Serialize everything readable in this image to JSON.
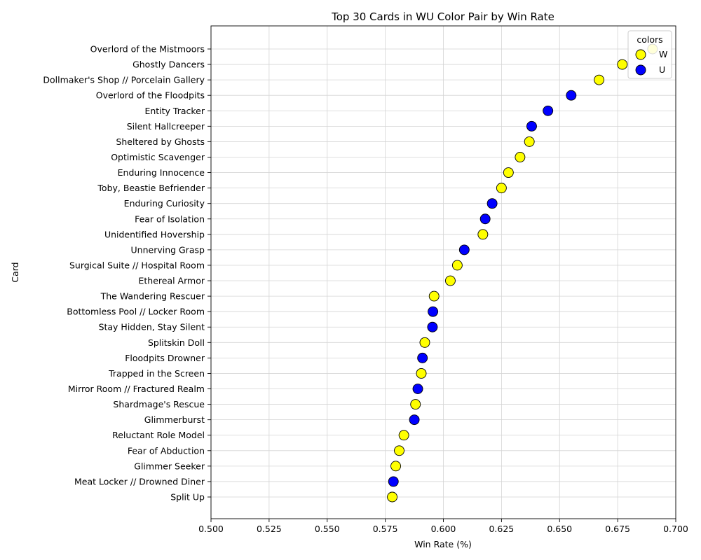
{
  "chart_data": {
    "type": "scatter",
    "title": "Top 30 Cards in WU Color Pair by Win Rate",
    "xlabel": "Win Rate (%)",
    "ylabel": "Card",
    "xlim": [
      0.5,
      0.7
    ],
    "xticks": [
      "0.500",
      "0.525",
      "0.550",
      "0.575",
      "0.600",
      "0.625",
      "0.650",
      "0.675",
      "0.700"
    ],
    "grid": true,
    "legend": {
      "title": "colors",
      "placement": "top-right",
      "entries": [
        {
          "label": "W",
          "color": "#ffff00"
        },
        {
          "label": "U",
          "color": "#0000ff"
        }
      ]
    },
    "points": [
      {
        "card": "Overlord of the Mistmoors",
        "value": 0.69,
        "color": "W"
      },
      {
        "card": "Ghostly Dancers",
        "value": 0.677,
        "color": "W"
      },
      {
        "card": "Dollmaker's Shop // Porcelain Gallery",
        "value": 0.667,
        "color": "W"
      },
      {
        "card": "Overlord of the Floodpits",
        "value": 0.655,
        "color": "U"
      },
      {
        "card": "Entity Tracker",
        "value": 0.645,
        "color": "U"
      },
      {
        "card": "Silent Hallcreeper",
        "value": 0.638,
        "color": "U"
      },
      {
        "card": "Sheltered by Ghosts",
        "value": 0.637,
        "color": "W"
      },
      {
        "card": "Optimistic Scavenger",
        "value": 0.633,
        "color": "W"
      },
      {
        "card": "Enduring Innocence",
        "value": 0.628,
        "color": "W"
      },
      {
        "card": "Toby, Beastie Befriender",
        "value": 0.625,
        "color": "W"
      },
      {
        "card": "Enduring Curiosity",
        "value": 0.621,
        "color": "U"
      },
      {
        "card": "Fear of Isolation",
        "value": 0.618,
        "color": "U"
      },
      {
        "card": "Unidentified Hovership",
        "value": 0.617,
        "color": "W"
      },
      {
        "card": "Unnerving Grasp",
        "value": 0.609,
        "color": "U"
      },
      {
        "card": "Surgical Suite // Hospital Room",
        "value": 0.606,
        "color": "W"
      },
      {
        "card": "Ethereal Armor",
        "value": 0.603,
        "color": "W"
      },
      {
        "card": "The Wandering Rescuer",
        "value": 0.596,
        "color": "W"
      },
      {
        "card": "Bottomless Pool // Locker Room",
        "value": 0.5955,
        "color": "U"
      },
      {
        "card": "Stay Hidden, Stay Silent",
        "value": 0.5953,
        "color": "U"
      },
      {
        "card": "Splitskin Doll",
        "value": 0.592,
        "color": "W"
      },
      {
        "card": "Floodpits Drowner",
        "value": 0.591,
        "color": "U"
      },
      {
        "card": "Trapped in the Screen",
        "value": 0.5905,
        "color": "W"
      },
      {
        "card": "Mirror Room // Fractured Realm",
        "value": 0.589,
        "color": "U"
      },
      {
        "card": "Shardmage's Rescue",
        "value": 0.588,
        "color": "W"
      },
      {
        "card": "Glimmerburst",
        "value": 0.5875,
        "color": "U"
      },
      {
        "card": "Reluctant Role Model",
        "value": 0.583,
        "color": "W"
      },
      {
        "card": "Fear of Abduction",
        "value": 0.581,
        "color": "W"
      },
      {
        "card": "Glimmer Seeker",
        "value": 0.5795,
        "color": "W"
      },
      {
        "card": "Meat Locker // Drowned Diner",
        "value": 0.5785,
        "color": "U"
      },
      {
        "card": "Split Up",
        "value": 0.578,
        "color": "W"
      }
    ]
  }
}
